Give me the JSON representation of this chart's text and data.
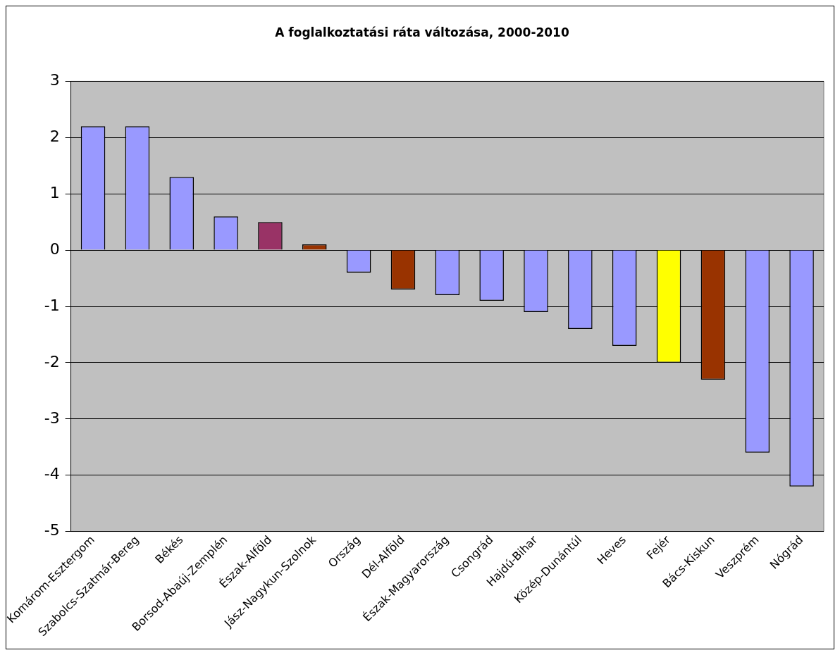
{
  "chart_data": {
    "type": "bar",
    "title": "A foglalkoztatási ráta változása, 2000-2010",
    "categories": [
      "Komárom-Esztergom",
      "Szabolcs-Szatmár-Bereg",
      "Békés",
      "Borsod-Abaúj-Zemplén",
      "Észak-Alföld",
      "Jász-Nagykun-Szolnok",
      "Ország",
      "Dél-Alföld",
      "Észak-Magyarország",
      "Csongrád",
      "Hajdú-Bihar",
      "Közép-Dunántúl",
      "Heves",
      "Fejér",
      "Bács-Kiskun",
      "Veszprém",
      "Nógrád"
    ],
    "values": [
      2.2,
      2.2,
      1.3,
      0.6,
      0.5,
      0.1,
      -0.4,
      -0.7,
      -0.8,
      -0.9,
      -1.1,
      -1.4,
      -1.7,
      -2.0,
      -2.3,
      -3.6,
      -4.2
    ],
    "colors": [
      "#9999ff",
      "#9999ff",
      "#9999ff",
      "#9999ff",
      "#993366",
      "#993300",
      "#9999ff",
      "#993300",
      "#9999ff",
      "#9999ff",
      "#9999ff",
      "#9999ff",
      "#9999ff",
      "#ffff00",
      "#993300",
      "#9999ff",
      "#9999ff"
    ],
    "ylim": [
      -5,
      3
    ],
    "yticks": [
      -5,
      -4,
      -3,
      -2,
      -1,
      0,
      1,
      2,
      3
    ],
    "grid": "y",
    "legend": false
  }
}
